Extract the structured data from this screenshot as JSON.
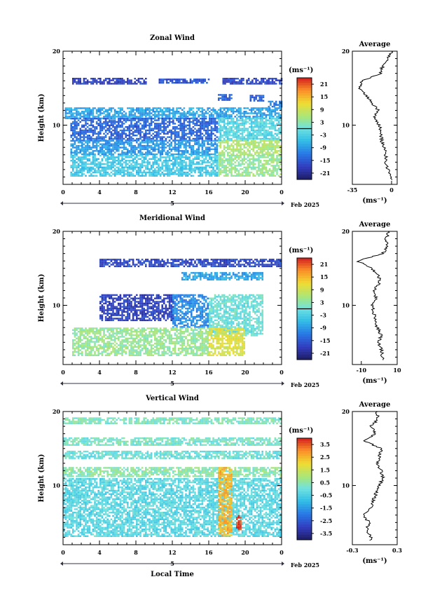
{
  "figure": {
    "date_label": "Feb 2025",
    "x_axis_label": "Local Time",
    "y_axis_label": "Height (km)",
    "units_label": "(ms⁻¹)",
    "average_title": "Average",
    "average_unit": "(ms⁻¹)"
  },
  "chart_data": [
    {
      "type": "heatmap",
      "title": "Zonal Wind",
      "xlabel": "",
      "ylabel": "Height (km)",
      "x_ticks": [
        "0",
        "4",
        "8",
        "12",
        "16",
        "20",
        "0"
      ],
      "x_day_label": "5",
      "y_ticks": [
        "20",
        "10"
      ],
      "xlim": [
        0,
        24
      ],
      "ylim": [
        2,
        20
      ],
      "colorbar": {
        "unit": "(ms⁻¹)",
        "ticks": [
          "21",
          "15",
          "9",
          "3",
          "-3",
          "-9",
          "-15",
          "-21"
        ],
        "min": -24,
        "max": 24,
        "zero_line": true
      },
      "field": [
        {
          "t0": 1,
          "t1": 9,
          "z0": 15.6,
          "z1": 16.4,
          "v": -18
        },
        {
          "t0": 10.5,
          "t1": 16,
          "z0": 15.7,
          "z1": 16.3,
          "v": -16
        },
        {
          "t0": 17.5,
          "t1": 24,
          "z0": 15.6,
          "z1": 16.4,
          "v": -17
        },
        {
          "t0": 17,
          "t1": 18.5,
          "z0": 13.5,
          "z1": 14.2,
          "v": -14
        },
        {
          "t0": 20.5,
          "t1": 22,
          "z0": 13.4,
          "z1": 14.1,
          "v": -15
        },
        {
          "t0": 22.5,
          "t1": 24,
          "z0": 12.5,
          "z1": 13.3,
          "v": -12
        },
        {
          "t0": 0.2,
          "t1": 24,
          "z0": 11,
          "z1": 12.4,
          "v": -8
        },
        {
          "t0": 0.8,
          "t1": 17,
          "z0": 8,
          "z1": 11,
          "v": -14
        },
        {
          "t0": 17,
          "t1": 24,
          "z0": 8,
          "z1": 11,
          "v": -2
        },
        {
          "t0": 0.8,
          "t1": 17,
          "z0": 6,
          "z1": 8,
          "v": -9
        },
        {
          "t0": 17,
          "t1": 24,
          "z0": 6,
          "z1": 8,
          "v": 6
        },
        {
          "t0": 0.8,
          "t1": 17,
          "z0": 3.2,
          "z1": 6,
          "v": -4
        },
        {
          "t0": 17,
          "t1": 24,
          "z0": 3.2,
          "z1": 6,
          "v": 4
        }
      ],
      "average_profile": {
        "xlim": [
          -35,
          5
        ],
        "x_ticks": [
          "-35",
          "0"
        ],
        "heights": [
          3,
          4,
          5,
          6,
          7,
          8,
          9,
          10,
          11,
          12,
          13,
          14,
          15,
          16,
          17,
          18,
          19,
          20
        ],
        "values": [
          0,
          -3,
          -5,
          -5,
          -7,
          -9,
          -9,
          -11,
          -15,
          -12,
          -18,
          -22,
          -28,
          -26,
          -10,
          -8,
          -3,
          0
        ]
      }
    },
    {
      "type": "heatmap",
      "title": "Meridional Wind",
      "xlabel": "",
      "ylabel": "Height (km)",
      "x_ticks": [
        "0",
        "4",
        "8",
        "12",
        "16",
        "20",
        "0"
      ],
      "x_day_label": "5",
      "y_ticks": [
        "20",
        "10"
      ],
      "xlim": [
        0,
        24
      ],
      "ylim": [
        2,
        20
      ],
      "colorbar": {
        "unit": "(ms⁻¹)",
        "ticks": [
          "21",
          "15",
          "9",
          "3",
          "-3",
          "-9",
          "-15",
          "-21"
        ],
        "min": -24,
        "max": 24,
        "zero_line": true
      },
      "field": [
        {
          "t0": 4,
          "t1": 24,
          "z0": 15.3,
          "z1": 16.3,
          "v": -17
        },
        {
          "t0": 13,
          "t1": 22,
          "z0": 13.5,
          "z1": 14.5,
          "v": -8
        },
        {
          "t0": 4,
          "t1": 12,
          "z0": 8,
          "z1": 11.5,
          "v": -18
        },
        {
          "t0": 12,
          "t1": 16,
          "z0": 7,
          "z1": 11.5,
          "v": -10
        },
        {
          "t0": 16,
          "t1": 22,
          "z0": 6,
          "z1": 11.5,
          "v": 0
        },
        {
          "t0": 1,
          "t1": 16,
          "z0": 3.2,
          "z1": 7,
          "v": 4
        },
        {
          "t0": 16,
          "t1": 20,
          "z0": 3.2,
          "z1": 7,
          "v": 10
        }
      ],
      "average_profile": {
        "xlim": [
          -15,
          10
        ],
        "x_ticks": [
          "-10",
          "10"
        ],
        "heights": [
          3,
          4,
          5,
          6,
          7,
          8,
          9,
          10,
          11,
          12,
          13,
          14,
          15,
          16,
          17,
          18,
          19,
          20
        ],
        "values": [
          2,
          1,
          0,
          1,
          -1,
          -2,
          -3,
          -4,
          -2,
          -3,
          0,
          0,
          -4,
          -12,
          2,
          5,
          4,
          5
        ]
      }
    },
    {
      "type": "heatmap",
      "title": "Vertical Wind",
      "xlabel": "Local Time",
      "ylabel": "Height (km)",
      "x_ticks": [
        "0",
        "4",
        "8",
        "12",
        "16",
        "20",
        "0"
      ],
      "x_day_label": "5",
      "y_ticks": [
        "20",
        "10"
      ],
      "xlim": [
        0,
        24
      ],
      "ylim": [
        2,
        20
      ],
      "colorbar": {
        "unit": "(ms⁻¹)",
        "ticks": [
          "3.5",
          "2.5",
          "1.5",
          "0.5",
          "-0.5",
          "-1.5",
          "-2.5",
          "-3.5"
        ],
        "min": -4,
        "max": 4,
        "zero_line": false
      },
      "field": [
        {
          "t0": 0,
          "t1": 24,
          "z0": 18.4,
          "z1": 19.2,
          "v": 0.3
        },
        {
          "t0": 0,
          "t1": 24,
          "z0": 15.5,
          "z1": 16.5,
          "v": 0.2
        },
        {
          "t0": 0,
          "t1": 24,
          "z0": 13.7,
          "z1": 14.7,
          "v": 0.0
        },
        {
          "t0": 0,
          "t1": 24,
          "z0": 11.2,
          "z1": 12.5,
          "v": 0.5
        },
        {
          "t0": 0,
          "t1": 24,
          "z0": 3.2,
          "z1": 11,
          "v": -0.3
        },
        {
          "t0": 17,
          "t1": 18.5,
          "z0": 3.3,
          "z1": 12.5,
          "v": 2.5
        },
        {
          "t0": 19,
          "t1": 19.6,
          "z0": 4,
          "z1": 6,
          "v": 3.8
        }
      ],
      "average_profile": {
        "xlim": [
          -0.3,
          0.3
        ],
        "x_ticks": [
          "-0.3",
          "0.3"
        ],
        "heights": [
          3,
          4,
          5,
          6,
          7,
          8,
          9,
          10,
          11,
          12,
          13,
          14,
          15,
          16,
          17,
          18,
          19,
          20
        ],
        "values": [
          -0.05,
          -0.1,
          -0.08,
          -0.15,
          -0.05,
          -0.02,
          0.02,
          0.05,
          0.12,
          0.08,
          0.03,
          0.06,
          0.1,
          -0.15,
          0.0,
          -0.05,
          0.05,
          0.02
        ]
      }
    }
  ]
}
